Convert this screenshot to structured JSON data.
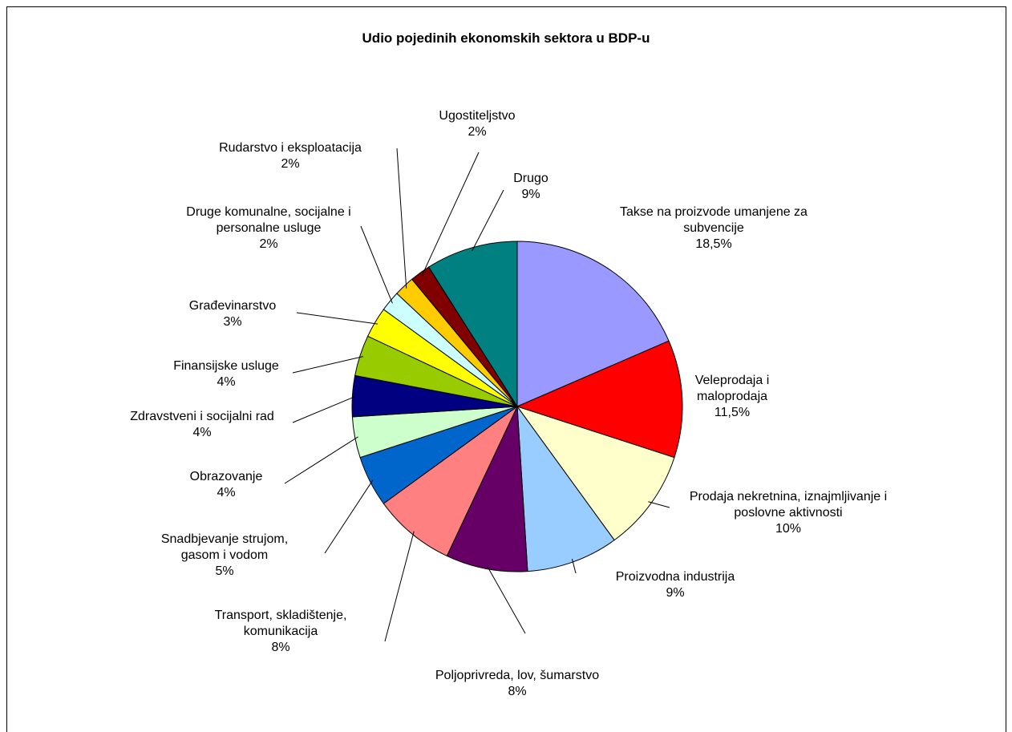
{
  "chart_data": {
    "type": "pie",
    "title": "Udio pojedinih ekonomskih sektora u BDP-u",
    "categories": [
      "Takse na proizvode umanjene za subvencije",
      "Veleprodaja i maloprodaja",
      "Prodaja nekretnina, iznajmljivanje i poslovne aktivnosti",
      "Proizvodna industrija",
      "Poljoprivreda, lov, šumarstvo",
      "Transport, skladištenje, komunikacija",
      "Snadbjevanje strujom, gasom i vodom",
      "Obrazovanje",
      "Zdravstveni i socijalni rad",
      "Finansijske usluge",
      "Građevinarstvo",
      "Druge komunalne, socijalne i personalne usluge",
      "Rudarstvo i eksploatacija",
      "Ugostiteljstvo",
      "Drugo"
    ],
    "values": [
      18.5,
      11.5,
      10,
      9,
      8,
      8,
      5,
      4,
      4,
      4,
      3,
      2,
      2,
      2,
      9
    ],
    "value_labels": [
      "18,5%",
      "11,5%",
      "10%",
      "9%",
      "8%",
      "8%",
      "5%",
      "4%",
      "4%",
      "4%",
      "3%",
      "2%",
      "2%",
      "2%",
      "9%"
    ],
    "colors": [
      "#9999ff",
      "#ff0000",
      "#ffffcc",
      "#99ccff",
      "#660066",
      "#ff8080",
      "#0066cc",
      "#ccffcc",
      "#000080",
      "#99cc00",
      "#ffff00",
      "#ccffff",
      "#ffcc00",
      "#800000",
      "#008080"
    ]
  }
}
